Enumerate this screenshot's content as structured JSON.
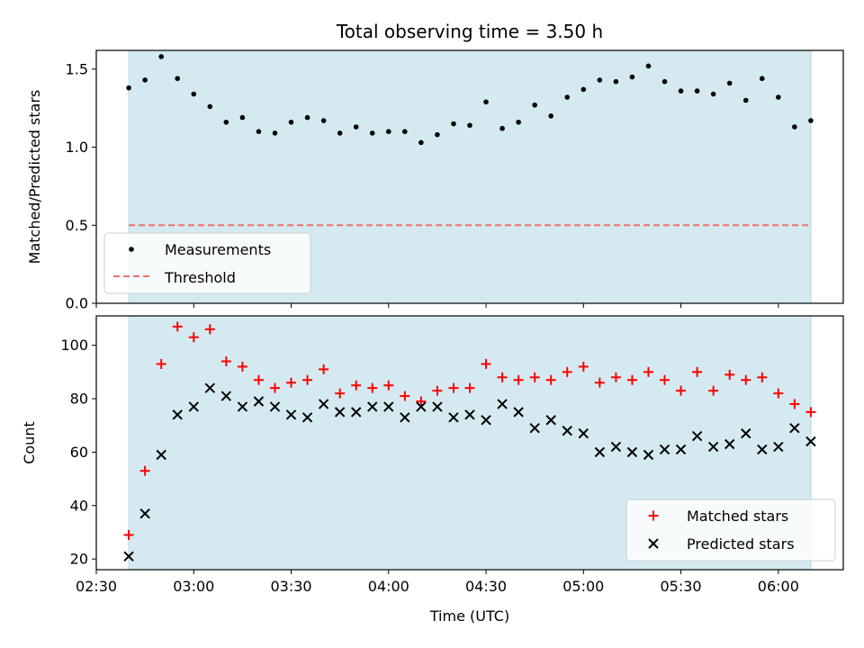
{
  "figure": {
    "title": "Total observing time = 3.50 h",
    "xlabel": "Time (UTC)",
    "shade_color": "#d4eaf0",
    "x_ticks": [
      "02:30",
      "03:00",
      "03:30",
      "04:00",
      "04:30",
      "05:00",
      "05:30",
      "06:00"
    ]
  },
  "chart_data": [
    {
      "type": "scatter",
      "panel": "top",
      "title": "Total observing time = 3.50 h",
      "xlabel": "",
      "ylabel": "Matched/Predicted stars",
      "x_unit": "minutes after 02:30 UTC",
      "xlim": [
        0,
        230
      ],
      "ylim": [
        0,
        1.62
      ],
      "yticks": [
        0.0,
        0.5,
        1.0,
        1.5
      ],
      "ytick_labels": [
        "0.0",
        "0.5",
        "1.0",
        "1.5"
      ],
      "shaded_span": [
        10,
        220
      ],
      "legend": {
        "placement": "lower-left",
        "entries": [
          "Measurements",
          "Threshold"
        ]
      },
      "series": [
        {
          "name": "Measurements",
          "marker": "dot",
          "color": "#000000",
          "x": [
            10,
            15,
            20,
            25,
            30,
            35,
            40,
            45,
            50,
            55,
            60,
            65,
            70,
            75,
            80,
            85,
            90,
            95,
            100,
            105,
            110,
            115,
            120,
            125,
            130,
            135,
            140,
            145,
            150,
            155,
            160,
            165,
            170,
            175,
            180,
            185,
            190,
            195,
            200,
            205,
            210,
            215,
            220
          ],
          "y": [
            1.38,
            1.43,
            1.58,
            1.44,
            1.34,
            1.26,
            1.16,
            1.19,
            1.1,
            1.09,
            1.16,
            1.19,
            1.17,
            1.09,
            1.13,
            1.09,
            1.1,
            1.1,
            1.03,
            1.08,
            1.15,
            1.14,
            1.29,
            1.12,
            1.16,
            1.27,
            1.2,
            1.32,
            1.37,
            1.43,
            1.42,
            1.45,
            1.52,
            1.42,
            1.36,
            1.36,
            1.34,
            1.41,
            1.3,
            1.44,
            1.32,
            1.13,
            1.17
          ]
        },
        {
          "name": "Threshold",
          "line": "dashed",
          "color": "#f07070",
          "x": [
            10,
            220
          ],
          "y": [
            0.5,
            0.5
          ]
        }
      ]
    },
    {
      "type": "scatter",
      "panel": "bottom",
      "xlabel": "Time (UTC)",
      "ylabel": "Count",
      "x_unit": "minutes after 02:30 UTC",
      "xlim": [
        0,
        230
      ],
      "ylim": [
        16,
        111
      ],
      "yticks": [
        20,
        40,
        60,
        80,
        100
      ],
      "ytick_labels": [
        "20",
        "40",
        "60",
        "80",
        "100"
      ],
      "shaded_span": [
        10,
        220
      ],
      "legend": {
        "placement": "lower-right",
        "entries": [
          "Matched stars",
          "Predicted stars"
        ]
      },
      "series": [
        {
          "name": "Matched stars",
          "marker": "plus",
          "color": "#ff0000",
          "x": [
            10,
            15,
            20,
            25,
            30,
            35,
            40,
            45,
            50,
            55,
            60,
            65,
            70,
            75,
            80,
            85,
            90,
            95,
            100,
            105,
            110,
            115,
            120,
            125,
            130,
            135,
            140,
            145,
            150,
            155,
            160,
            165,
            170,
            175,
            180,
            185,
            190,
            195,
            200,
            205,
            210,
            215,
            220
          ],
          "y": [
            29,
            53,
            93,
            107,
            103,
            106,
            94,
            92,
            87,
            84,
            86,
            87,
            91,
            82,
            85,
            84,
            85,
            81,
            79,
            83,
            84,
            84,
            93,
            88,
            87,
            88,
            87,
            90,
            92,
            86,
            88,
            87,
            90,
            87,
            83,
            90,
            83,
            89,
            87,
            88,
            82,
            78,
            75
          ]
        },
        {
          "name": "Predicted stars",
          "marker": "x",
          "color": "#000000",
          "x": [
            10,
            15,
            20,
            25,
            30,
            35,
            40,
            45,
            50,
            55,
            60,
            65,
            70,
            75,
            80,
            85,
            90,
            95,
            100,
            105,
            110,
            115,
            120,
            125,
            130,
            135,
            140,
            145,
            150,
            155,
            160,
            165,
            170,
            175,
            180,
            185,
            190,
            195,
            200,
            205,
            210,
            215,
            220
          ],
          "y": [
            21,
            37,
            59,
            74,
            77,
            84,
            81,
            77,
            79,
            77,
            74,
            73,
            78,
            75,
            75,
            77,
            77,
            73,
            77,
            77,
            73,
            74,
            72,
            78,
            75,
            69,
            72,
            68,
            67,
            60,
            62,
            60,
            59,
            61,
            61,
            66,
            62,
            63,
            67,
            61,
            62,
            69,
            64
          ]
        }
      ]
    }
  ]
}
